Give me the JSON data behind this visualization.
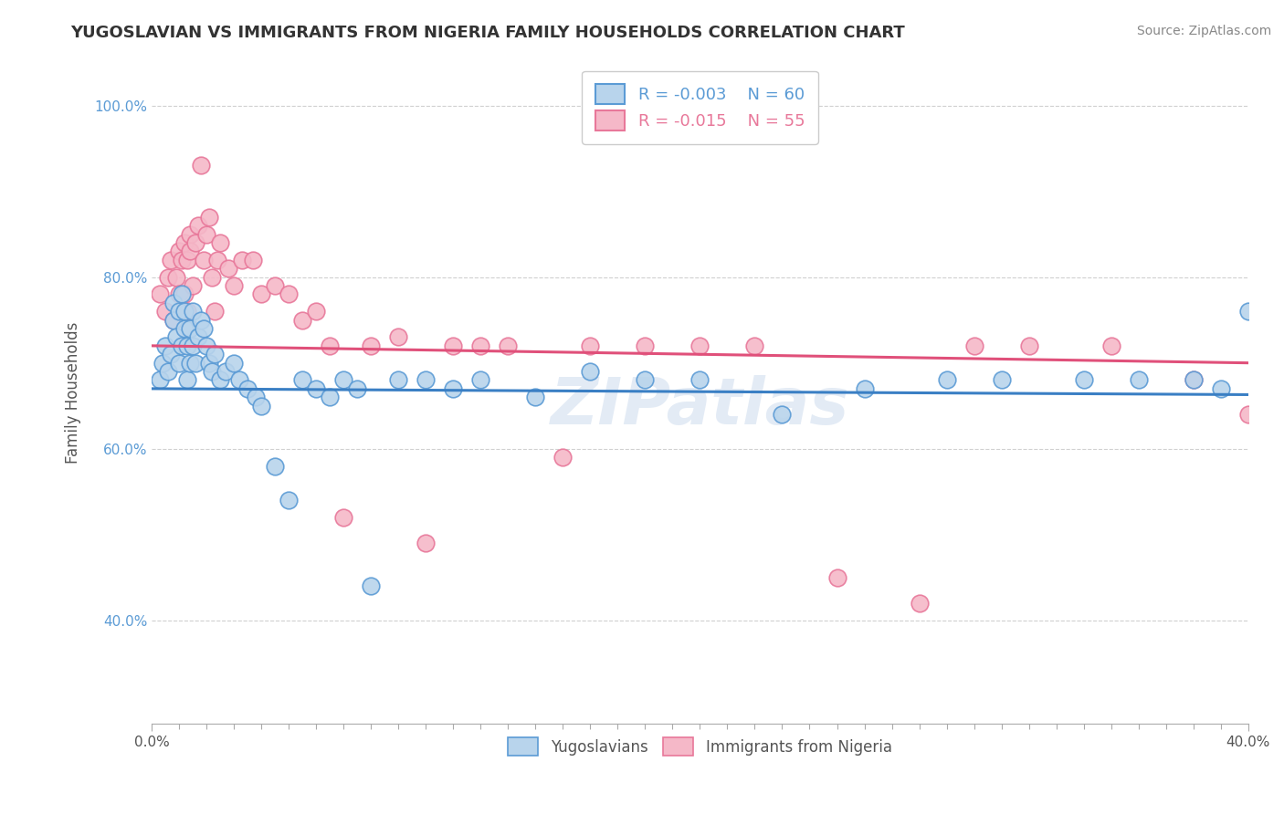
{
  "title": "YUGOSLAVIAN VS IMMIGRANTS FROM NIGERIA FAMILY HOUSEHOLDS CORRELATION CHART",
  "source": "Source: ZipAtlas.com",
  "ylabel": "Family Households",
  "x_min": 0.0,
  "x_max": 0.4,
  "y_min": 0.28,
  "y_max": 1.05,
  "y_ticks": [
    0.4,
    0.6,
    0.8,
    1.0
  ],
  "y_tick_labels": [
    "40.0%",
    "60.0%",
    "80.0%",
    "100.0%"
  ],
  "x_tick_labels_shown": [
    "0.0%",
    "40.0%"
  ],
  "x_ticks_shown": [
    0.0,
    0.4
  ],
  "legend1_R": "-0.003",
  "legend1_N": "60",
  "legend2_R": "-0.015",
  "legend2_N": "55",
  "blue_fill": "#b8d4ec",
  "pink_fill": "#f5b8c8",
  "blue_edge": "#5b9bd5",
  "pink_edge": "#e8789a",
  "blue_line": "#3a7fc4",
  "pink_line": "#e0507a",
  "watermark": "ZIPatlas",
  "blue_scatter_x": [
    0.003,
    0.004,
    0.005,
    0.006,
    0.007,
    0.008,
    0.008,
    0.009,
    0.01,
    0.01,
    0.011,
    0.011,
    0.012,
    0.012,
    0.013,
    0.013,
    0.014,
    0.014,
    0.015,
    0.015,
    0.016,
    0.017,
    0.018,
    0.019,
    0.02,
    0.021,
    0.022,
    0.023,
    0.025,
    0.027,
    0.03,
    0.032,
    0.035,
    0.038,
    0.04,
    0.045,
    0.05,
    0.055,
    0.06,
    0.065,
    0.07,
    0.075,
    0.08,
    0.09,
    0.1,
    0.11,
    0.12,
    0.14,
    0.16,
    0.18,
    0.2,
    0.23,
    0.26,
    0.29,
    0.31,
    0.34,
    0.36,
    0.38,
    0.39,
    0.4
  ],
  "blue_scatter_y": [
    0.68,
    0.7,
    0.72,
    0.69,
    0.71,
    0.75,
    0.77,
    0.73,
    0.76,
    0.7,
    0.78,
    0.72,
    0.74,
    0.76,
    0.68,
    0.72,
    0.7,
    0.74,
    0.76,
    0.72,
    0.7,
    0.73,
    0.75,
    0.74,
    0.72,
    0.7,
    0.69,
    0.71,
    0.68,
    0.69,
    0.7,
    0.68,
    0.67,
    0.66,
    0.65,
    0.58,
    0.54,
    0.68,
    0.67,
    0.66,
    0.68,
    0.67,
    0.44,
    0.68,
    0.68,
    0.67,
    0.68,
    0.66,
    0.69,
    0.68,
    0.68,
    0.64,
    0.67,
    0.68,
    0.68,
    0.68,
    0.68,
    0.68,
    0.67,
    0.76
  ],
  "pink_scatter_x": [
    0.003,
    0.005,
    0.006,
    0.007,
    0.008,
    0.009,
    0.01,
    0.01,
    0.011,
    0.012,
    0.012,
    0.013,
    0.013,
    0.014,
    0.014,
    0.015,
    0.016,
    0.017,
    0.018,
    0.019,
    0.02,
    0.021,
    0.022,
    0.023,
    0.024,
    0.025,
    0.028,
    0.03,
    0.033,
    0.037,
    0.04,
    0.045,
    0.05,
    0.055,
    0.06,
    0.065,
    0.07,
    0.08,
    0.09,
    0.1,
    0.11,
    0.12,
    0.13,
    0.15,
    0.16,
    0.18,
    0.2,
    0.22,
    0.25,
    0.28,
    0.3,
    0.32,
    0.35,
    0.38,
    0.4
  ],
  "pink_scatter_y": [
    0.78,
    0.76,
    0.8,
    0.82,
    0.75,
    0.8,
    0.78,
    0.83,
    0.82,
    0.84,
    0.78,
    0.82,
    0.76,
    0.85,
    0.83,
    0.79,
    0.84,
    0.86,
    0.93,
    0.82,
    0.85,
    0.87,
    0.8,
    0.76,
    0.82,
    0.84,
    0.81,
    0.79,
    0.82,
    0.82,
    0.78,
    0.79,
    0.78,
    0.75,
    0.76,
    0.72,
    0.52,
    0.72,
    0.73,
    0.49,
    0.72,
    0.72,
    0.72,
    0.59,
    0.72,
    0.72,
    0.72,
    0.72,
    0.45,
    0.42,
    0.72,
    0.72,
    0.72,
    0.68,
    0.64
  ],
  "blue_trend_x0": 0.0,
  "blue_trend_x1": 0.4,
  "blue_trend_y0": 0.67,
  "blue_trend_y1": 0.663,
  "pink_trend_x0": 0.0,
  "pink_trend_x1": 0.4,
  "pink_trend_y0": 0.72,
  "pink_trend_y1": 0.7
}
